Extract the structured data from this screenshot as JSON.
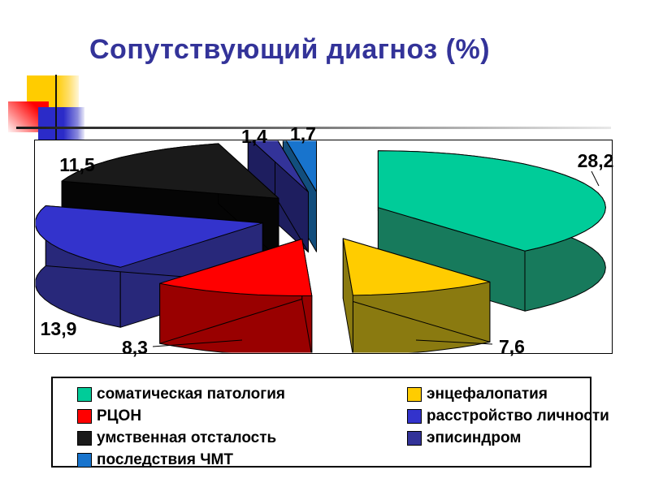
{
  "slide": {
    "title": "Сопутствующий диагноз (%)",
    "title_color": "#333399",
    "background": "#FFFFFF",
    "decor_colors": {
      "yellow": "#FFCC00",
      "red": "#FF0000",
      "blue": "#2B2BC8",
      "line": "#1A1A1A"
    }
  },
  "chart_data": {
    "type": "pie",
    "style": "3d-exploded",
    "title": "Сопутствующий диагноз (%)",
    "unit": "%",
    "legend_position": "bottom",
    "legend_columns": [
      [
        0,
        2,
        4,
        6
      ],
      [
        1,
        3,
        5
      ]
    ],
    "series": [
      {
        "label": "соматическая патология",
        "value": 28.2,
        "display": "28,2",
        "color": "#00CC99",
        "side": "#177A5C"
      },
      {
        "label": "энцефалопатия",
        "value": 7.6,
        "display": "7,6",
        "color": "#FFCC00",
        "side": "#8A7A10"
      },
      {
        "label": "РЦОН",
        "value": 8.3,
        "display": "8,3",
        "color": "#FF0000",
        "side": "#990000"
      },
      {
        "label": "расстройство личности",
        "value": 13.9,
        "display": "13,9",
        "color": "#3333CC",
        "side": "#28287A"
      },
      {
        "label": "умственная отсталость",
        "value": 11.5,
        "display": "11,5",
        "color": "#1A1A1A",
        "side": "#050505"
      },
      {
        "label": "эписиндром",
        "value": 1.4,
        "display": "1,4",
        "color": "#333399",
        "side": "#1E1E5F"
      },
      {
        "label": "последствия ЧМТ",
        "value": 1.7,
        "display": "1,7",
        "color": "#1874CD",
        "side": "#124E7D"
      }
    ]
  }
}
